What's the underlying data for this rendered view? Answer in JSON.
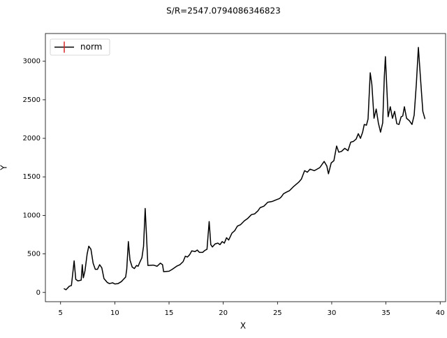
{
  "chart_data": {
    "type": "line",
    "title": "S/R=2547.0794086346823",
    "x_label": "X",
    "y_label": "Y",
    "x": [
      5.3,
      5.5,
      5.8,
      6.0,
      6.25,
      6.4,
      6.6,
      6.9,
      7.0,
      7.1,
      7.25,
      7.45,
      7.6,
      7.8,
      8.0,
      8.2,
      8.4,
      8.6,
      8.8,
      9.0,
      9.3,
      9.5,
      9.8,
      10.0,
      10.3,
      10.6,
      10.8,
      11.0,
      11.1,
      11.25,
      11.4,
      11.6,
      11.8,
      12.0,
      12.15,
      12.3,
      12.5,
      12.65,
      12.8,
      12.9,
      13.05,
      13.55,
      13.9,
      14.2,
      14.4,
      14.5,
      15.0,
      15.3,
      15.7,
      16.0,
      16.3,
      16.5,
      16.7,
      16.9,
      17.1,
      17.4,
      17.6,
      17.8,
      18.1,
      18.3,
      18.5,
      18.7,
      18.85,
      19.0,
      19.25,
      19.5,
      19.7,
      19.9,
      20.1,
      20.3,
      20.5,
      20.8,
      21.05,
      21.3,
      21.6,
      21.95,
      22.25,
      22.6,
      22.9,
      23.2,
      23.4,
      23.75,
      24.1,
      24.5,
      24.85,
      25.2,
      25.35,
      25.55,
      25.8,
      26.1,
      26.45,
      26.95,
      27.2,
      27.5,
      27.75,
      28.0,
      28.4,
      28.9,
      29.3,
      29.55,
      29.7,
      29.95,
      30.2,
      30.45,
      30.65,
      30.9,
      31.2,
      31.5,
      31.75,
      32.0,
      32.25,
      32.45,
      32.65,
      32.85,
      33.0,
      33.2,
      33.35,
      33.55,
      33.7,
      33.9,
      34.1,
      34.3,
      34.5,
      34.7,
      34.85,
      34.95,
      35.2,
      35.4,
      35.6,
      35.8,
      36.0,
      36.2,
      36.4,
      36.55,
      36.7,
      36.9,
      37.15,
      37.4,
      37.6,
      37.8,
      37.99,
      38.2,
      38.4,
      38.6
    ],
    "series": [
      {
        "name": "norm",
        "color": "#000000",
        "marker_color": "#d62728",
        "values": [
          50,
          35,
          80,
          90,
          410,
          170,
          150,
          160,
          360,
          190,
          280,
          500,
          600,
          560,
          380,
          300,
          300,
          360,
          320,
          180,
          130,
          115,
          125,
          110,
          115,
          140,
          170,
          200,
          300,
          660,
          420,
          330,
          310,
          350,
          340,
          390,
          450,
          600,
          1090,
          800,
          350,
          355,
          340,
          380,
          360,
          270,
          275,
          300,
          340,
          360,
          400,
          470,
          460,
          490,
          540,
          530,
          550,
          520,
          520,
          545,
          560,
          920,
          620,
          590,
          630,
          640,
          620,
          660,
          640,
          710,
          680,
          770,
          800,
          860,
          880,
          930,
          960,
          1010,
          1020,
          1060,
          1100,
          1120,
          1170,
          1180,
          1200,
          1220,
          1240,
          1280,
          1300,
          1320,
          1370,
          1430,
          1470,
          1580,
          1560,
          1600,
          1580,
          1620,
          1700,
          1640,
          1540,
          1680,
          1710,
          1900,
          1820,
          1830,
          1870,
          1840,
          1950,
          1960,
          1990,
          2060,
          2000,
          2080,
          2180,
          2170,
          2250,
          2850,
          2700,
          2260,
          2380,
          2200,
          2080,
          2200,
          2800,
          3060,
          2280,
          2410,
          2260,
          2350,
          2190,
          2180,
          2280,
          2290,
          2410,
          2260,
          2230,
          2180,
          2300,
          2700,
          3180,
          2750,
          2350,
          2250
        ]
      }
    ],
    "xlim": [
      3.6,
      40.5
    ],
    "ylim": [
      -120,
      3360
    ],
    "xticks": [
      5,
      10,
      15,
      20,
      25,
      30,
      35,
      40
    ],
    "yticks": [
      0,
      500,
      1000,
      1500,
      2000,
      2500,
      3000
    ],
    "legend": "upper left"
  }
}
